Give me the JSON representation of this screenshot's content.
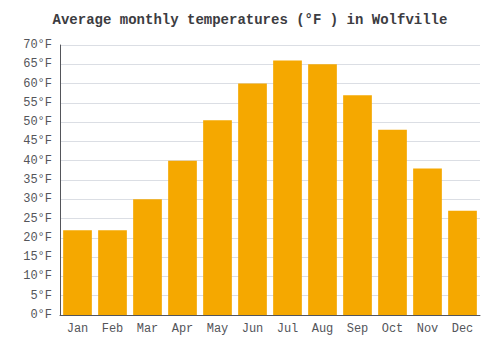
{
  "chart_data": {
    "type": "bar",
    "title": "Average monthly temperatures (°F ) in Wolfville",
    "categories": [
      "Jan",
      "Feb",
      "Mar",
      "Apr",
      "May",
      "Jun",
      "Jul",
      "Aug",
      "Sep",
      "Oct",
      "Nov",
      "Dec"
    ],
    "values": [
      22,
      22,
      30,
      40,
      50.5,
      60,
      66,
      65,
      57,
      48,
      38,
      27
    ],
    "color": "#F5A800",
    "ylim": [
      0,
      70
    ],
    "yticks": [
      {
        "value": 0,
        "label": "0°F"
      },
      {
        "value": 5,
        "label": "5°F"
      },
      {
        "value": 10,
        "label": "10°F"
      },
      {
        "value": 15,
        "label": "15°F"
      },
      {
        "value": 20,
        "label": "20°F"
      },
      {
        "value": 25,
        "label": "25°F"
      },
      {
        "value": 30,
        "label": "30°F"
      },
      {
        "value": 35,
        "label": "35°F"
      },
      {
        "value": 40,
        "label": "40°F"
      },
      {
        "value": 45,
        "label": "45°F"
      },
      {
        "value": 50,
        "label": "50°F"
      },
      {
        "value": 55,
        "label": "55°F"
      },
      {
        "value": 60,
        "label": "60°F"
      },
      {
        "value": 65,
        "label": "65°F"
      },
      {
        "value": 70,
        "label": "70°F"
      }
    ],
    "grid": true
  }
}
